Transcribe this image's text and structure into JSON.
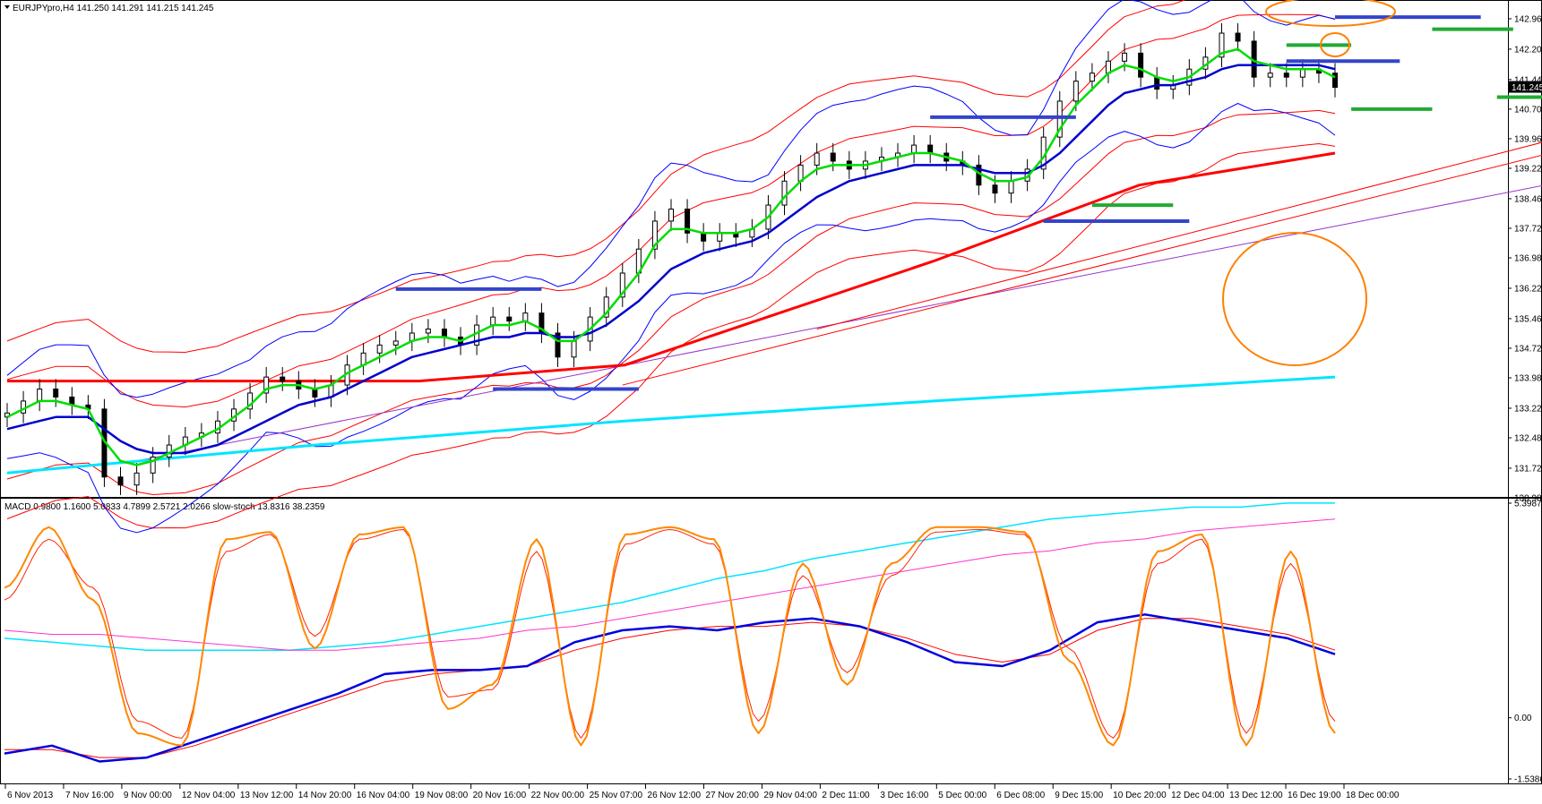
{
  "chart_data": {
    "type": "candlestick",
    "symbol_header": "EURJPYpro,H4  141.250 141.291 141.215 141.245",
    "current_price_label": "141.245",
    "current_price": 141.245,
    "price_ylim": [
      130.98,
      143.25
    ],
    "price_ticks": [
      "142.960",
      "142.200",
      "141.440",
      "140.700",
      "139.960",
      "139.220",
      "138.460",
      "137.720",
      "136.980",
      "136.220",
      "135.460",
      "134.720",
      "133.980",
      "133.220",
      "132.480",
      "131.720",
      "130.980"
    ],
    "x_tick_labels": [
      "6 Nov 2013",
      "7 Nov 16:00",
      "9 Nov 00:00",
      "12 Nov 04:00",
      "13 Nov 12:00",
      "14 Nov 20:00",
      "16 Nov 04:00",
      "19 Nov 08:00",
      "20 Nov 16:00",
      "22 Nov 00:00",
      "25 Nov 07:00",
      "26 Nov 12:00",
      "27 Nov 20:00",
      "29 Nov 04:00",
      "2 Dec 11:00",
      "3 Dec 16:00",
      "5 Dec 00:00",
      "6 Dec 08:00",
      "9 Dec 15:00",
      "10 Dec 20:00",
      "12 Dec 04:00",
      "13 Dec 12:00",
      "16 Dec 19:00",
      "18 Dec 00:00"
    ],
    "closes": [
      133.1,
      133.4,
      133.7,
      133.5,
      133.3,
      133.2,
      131.5,
      131.3,
      131.6,
      132.0,
      132.3,
      132.5,
      132.6,
      132.9,
      133.2,
      133.6,
      134.0,
      133.9,
      133.7,
      133.5,
      133.8,
      134.3,
      134.6,
      134.8,
      134.9,
      135.1,
      135.2,
      135.0,
      134.8,
      135.3,
      135.5,
      135.4,
      135.6,
      135.1,
      134.5,
      134.9,
      135.5,
      136.0,
      136.6,
      137.2,
      137.9,
      138.2,
      137.6,
      137.4,
      137.6,
      137.5,
      137.7,
      138.3,
      138.9,
      139.3,
      139.6,
      139.4,
      139.2,
      139.4,
      139.5,
      139.6,
      139.8,
      139.6,
      139.4,
      139.3,
      138.8,
      138.6,
      138.9,
      139.2,
      140.0,
      140.9,
      141.4,
      141.6,
      141.9,
      142.1,
      141.5,
      141.2,
      141.3,
      141.7,
      142.0,
      142.6,
      142.4,
      141.5,
      141.6,
      141.5,
      141.7,
      141.6,
      141.245
    ],
    "ema_fast": [
      133.0,
      133.2,
      133.4,
      133.4,
      133.3,
      133.2,
      132.4,
      131.9,
      131.8,
      131.9,
      132.1,
      132.3,
      132.5,
      132.7,
      133.0,
      133.3,
      133.7,
      133.8,
      133.8,
      133.7,
      133.8,
      134.1,
      134.3,
      134.5,
      134.7,
      134.9,
      135.0,
      135.0,
      134.9,
      135.1,
      135.3,
      135.3,
      135.4,
      135.2,
      134.9,
      134.9,
      135.2,
      135.6,
      136.1,
      136.6,
      137.3,
      137.7,
      137.7,
      137.6,
      137.6,
      137.6,
      137.7,
      138.0,
      138.5,
      138.9,
      139.2,
      139.3,
      139.3,
      139.3,
      139.4,
      139.5,
      139.6,
      139.6,
      139.5,
      139.4,
      139.1,
      138.9,
      138.9,
      139.0,
      139.5,
      140.2,
      140.8,
      141.2,
      141.6,
      141.8,
      141.7,
      141.5,
      141.4,
      141.5,
      141.8,
      142.1,
      142.2,
      141.9,
      141.8,
      141.7,
      141.7,
      141.7,
      141.5
    ],
    "ema_slow": [
      132.7,
      132.8,
      132.9,
      133.0,
      133.0,
      133.0,
      132.7,
      132.4,
      132.2,
      132.1,
      132.1,
      132.1,
      132.2,
      132.3,
      132.5,
      132.7,
      132.9,
      133.1,
      133.3,
      133.4,
      133.5,
      133.7,
      133.9,
      134.1,
      134.3,
      134.5,
      134.6,
      134.7,
      134.8,
      134.9,
      135.0,
      135.0,
      135.1,
      135.1,
      135.0,
      135.0,
      135.1,
      135.3,
      135.6,
      135.9,
      136.3,
      136.7,
      136.9,
      137.1,
      137.2,
      137.3,
      137.4,
      137.6,
      137.9,
      138.2,
      138.5,
      138.7,
      138.9,
      139.0,
      139.1,
      139.2,
      139.3,
      139.3,
      139.3,
      139.3,
      139.2,
      139.1,
      139.1,
      139.1,
      139.3,
      139.6,
      140.0,
      140.4,
      140.8,
      141.1,
      141.2,
      141.3,
      141.3,
      141.4,
      141.5,
      141.7,
      141.8,
      141.8,
      141.8,
      141.8,
      141.8,
      141.8,
      141.7
    ],
    "sma_red": [
      [
        0,
        133.9
      ],
      [
        40,
        133.9
      ],
      [
        60,
        134.3
      ],
      [
        75,
        135.6
      ],
      [
        90,
        136.9
      ],
      [
        110,
        138.8
      ],
      [
        129,
        139.6
      ]
    ],
    "sma_cyan": [
      [
        0,
        131.6
      ],
      [
        30,
        132.3
      ],
      [
        60,
        132.9
      ],
      [
        90,
        133.4
      ],
      [
        129,
        134.0
      ]
    ],
    "sr_levels_blue": [
      [
        24,
        33,
        136.2
      ],
      [
        30,
        39,
        133.7
      ],
      [
        57,
        66,
        140.5
      ],
      [
        64,
        73,
        137.9
      ],
      [
        79,
        86,
        141.9
      ],
      [
        82,
        91,
        143.0
      ]
    ],
    "sr_levels_green": [
      [
        67,
        72,
        138.3
      ],
      [
        79,
        83,
        142.3
      ],
      [
        83,
        88,
        140.7
      ],
      [
        88,
        93,
        142.7
      ],
      [
        92,
        97,
        141.0
      ],
      [
        96,
        100,
        142.2
      ],
      [
        99,
        102,
        140.7
      ]
    ],
    "macd_label": "MACD 0.9800 1.1600 5.0833 4.7899 2.5721 2.0266  slow-stoch 13.8316 38.2359",
    "macd_ylim": [
      -1.5386,
      5.3987
    ],
    "macd_ticks": [
      "5.3987",
      "0.00",
      "-1.5386"
    ],
    "macd_main": [
      -0.9,
      -0.7,
      -1.1,
      -1.0,
      -0.6,
      -0.2,
      0.2,
      0.6,
      1.1,
      1.2,
      1.2,
      1.3,
      1.9,
      2.2,
      2.3,
      2.2,
      2.4,
      2.5,
      2.3,
      1.9,
      1.4,
      1.3,
      1.7,
      2.4,
      2.6,
      2.4,
      2.2,
      2.0,
      1.6
    ],
    "macd_signal": [
      -0.8,
      -0.8,
      -1.0,
      -1.0,
      -0.7,
      -0.3,
      0.1,
      0.5,
      0.9,
      1.1,
      1.2,
      1.3,
      1.7,
      2.0,
      2.2,
      2.3,
      2.3,
      2.4,
      2.3,
      2.0,
      1.6,
      1.4,
      1.6,
      2.2,
      2.5,
      2.5,
      2.3,
      2.1,
      1.7
    ],
    "macd_cyan": [
      2.0,
      1.9,
      1.8,
      1.7,
      1.7,
      1.7,
      1.7,
      1.8,
      1.9,
      2.1,
      2.3,
      2.5,
      2.7,
      2.9,
      3.2,
      3.5,
      3.7,
      4.0,
      4.2,
      4.4,
      4.6,
      4.8,
      5.0,
      5.1,
      5.2,
      5.3,
      5.3,
      5.4,
      5.4
    ],
    "macd_magenta": [
      2.2,
      2.1,
      2.1,
      2.0,
      1.9,
      1.8,
      1.7,
      1.7,
      1.8,
      1.9,
      2.0,
      2.2,
      2.3,
      2.5,
      2.7,
      2.9,
      3.1,
      3.3,
      3.5,
      3.7,
      3.9,
      4.1,
      4.2,
      4.4,
      4.5,
      4.7,
      4.8,
      4.9,
      5.0
    ],
    "stoch_k": [
      0.7,
      0.95,
      0.65,
      0.1,
      0.05,
      0.9,
      0.93,
      0.45,
      0.92,
      0.95,
      0.2,
      0.3,
      0.9,
      0.05,
      0.92,
      0.95,
      0.9,
      0.1,
      0.8,
      0.3,
      0.8,
      0.95,
      0.95,
      0.93,
      0.4,
      0.05,
      0.85,
      0.92,
      0.05,
      0.85,
      0.1
    ],
    "stoch_d": [
      0.65,
      0.9,
      0.7,
      0.15,
      0.08,
      0.85,
      0.92,
      0.5,
      0.9,
      0.94,
      0.25,
      0.28,
      0.85,
      0.08,
      0.88,
      0.94,
      0.88,
      0.15,
      0.75,
      0.35,
      0.75,
      0.93,
      0.94,
      0.92,
      0.45,
      0.08,
      0.8,
      0.9,
      0.1,
      0.8,
      0.15
    ]
  },
  "colors": {
    "bull": "#ffffff",
    "bear": "#000000",
    "ema_fast": "#00dd00",
    "ema_slow": "#0000cc",
    "envelope": "#ff0000",
    "bands": "#0000ff",
    "sma_red": "#ff0000",
    "sma_cyan": "#00e5ff",
    "trend": "#9933cc",
    "circle": "#ff8000",
    "sr_blue": "#3344cc",
    "sr_green": "#22aa33",
    "price_box": "#000000"
  }
}
